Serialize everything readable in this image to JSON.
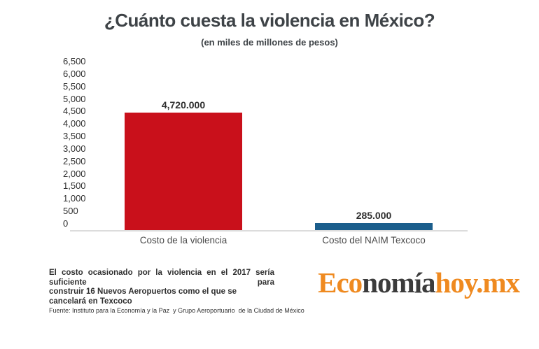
{
  "header": {
    "title": "¿Cuánto cuesta la violencia en México?",
    "subtitle": "(en miles de millones de pesos)"
  },
  "chart_data": {
    "type": "bar",
    "title": "¿Cuánto cuesta la violencia en México?",
    "subtitle": "(en miles de millones de pesos)",
    "categories": [
      "Costo de la violencia",
      "Costo del NAIM Texcoco"
    ],
    "values": [
      4720,
      285
    ],
    "value_labels": [
      "4,720.000",
      "285.000"
    ],
    "bar_colors": [
      "#c9101b",
      "#1b5e8c"
    ],
    "xlabel": "",
    "ylabel": "",
    "ylim": [
      0,
      6500
    ],
    "ytick_values": [
      0,
      500,
      1000,
      1500,
      2000,
      2500,
      3000,
      3500,
      4000,
      4500,
      5000,
      5500,
      6000,
      6500
    ],
    "ytick_labels": [
      "0",
      "500",
      "1,000",
      "1,500",
      "2,000",
      "2,500",
      "3,000",
      "3,500",
      "4,000",
      "4,500",
      "5,000",
      "5,500",
      "6,000",
      "6,500"
    ],
    "grid": false,
    "legend": false
  },
  "footer": {
    "note_line1": "El costo ocasionado por la violencia en el 2017 sería suficiente para",
    "note_line2": "construir 16 Nuevos Aeropuertos como el que se cancelará en Texcoco",
    "source": "Fuente: Instituto para la Economía y la Paz  y Grupo Aeroportuario  de la Ciudad de México"
  },
  "logo": {
    "part1": "Eco",
    "part2": "nomía",
    "part3": "hoy.mx",
    "orange": "#ef8a20",
    "dark": "#3b3b3b"
  }
}
